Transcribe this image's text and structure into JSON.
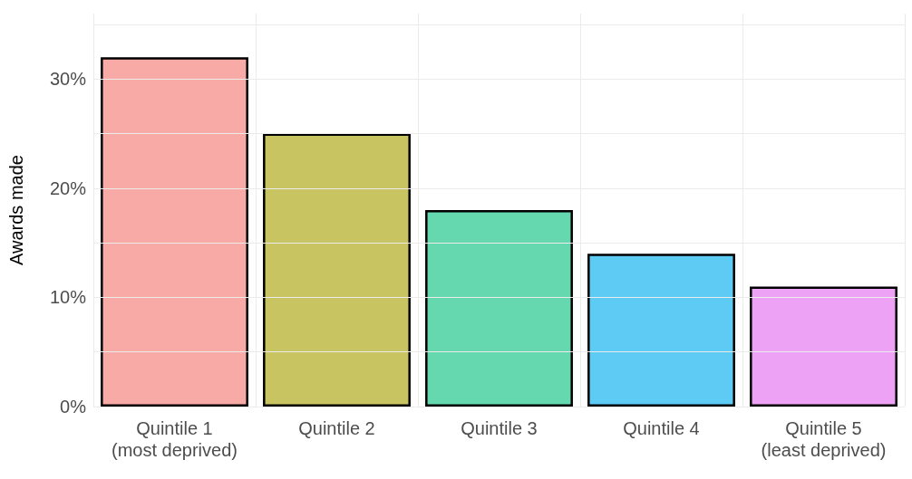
{
  "chart_data": {
    "type": "bar",
    "ylabel": "Awards made",
    "categories": [
      "Quintile 1\n(most deprived)",
      "Quintile 2",
      "Quintile 3",
      "Quintile 4",
      "Quintile 5\n(least deprived)"
    ],
    "values": [
      32,
      25,
      18,
      14,
      11
    ],
    "colors": [
      "#f8aba6",
      "#c8c462",
      "#66d8b0",
      "#5ecbf5",
      "#eea2f5"
    ],
    "ylim": [
      0,
      36
    ],
    "yticks": [
      {
        "value": 0,
        "label": "0%"
      },
      {
        "value": 5,
        "label": null
      },
      {
        "value": 10,
        "label": "10%"
      },
      {
        "value": 15,
        "label": null
      },
      {
        "value": 20,
        "label": "20%"
      },
      {
        "value": 25,
        "label": null
      },
      {
        "value": 30,
        "label": "30%"
      },
      {
        "value": 35,
        "label": null
      }
    ],
    "grid": true
  }
}
